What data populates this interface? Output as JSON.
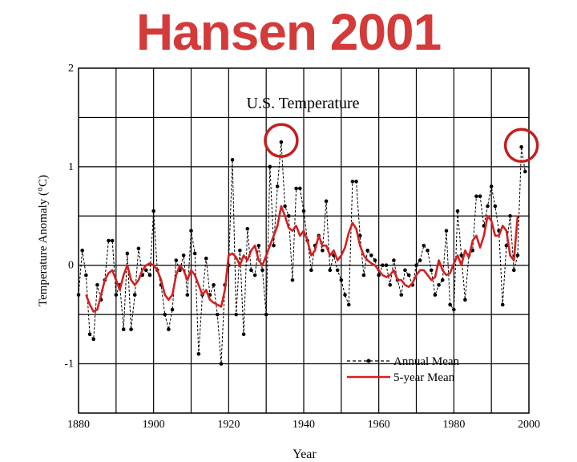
{
  "headline": "Hansen 2001",
  "headline_color": "#d43a3a",
  "chart_data": {
    "type": "line",
    "title": "U.S. Temperature",
    "xlabel": "Year",
    "ylabel": "Temperature Anomaly (°C)",
    "xlim": [
      1880,
      2000
    ],
    "ylim": [
      -1.5,
      2
    ],
    "xticks": [
      "1880",
      "1900",
      "1920",
      "1940",
      "1960",
      "1980",
      "2000"
    ],
    "yticks": [
      "-1",
      "0",
      "1",
      "2"
    ],
    "grid": true,
    "legend": "bottom-right",
    "series": [
      {
        "name": "Annual Mean",
        "style": "dashed-with-markers",
        "color": "#000000",
        "x": [
          1880,
          1881,
          1882,
          1883,
          1884,
          1885,
          1886,
          1887,
          1888,
          1889,
          1890,
          1891,
          1892,
          1893,
          1894,
          1895,
          1896,
          1897,
          1898,
          1899,
          1900,
          1901,
          1902,
          1903,
          1904,
          1905,
          1906,
          1907,
          1908,
          1909,
          1910,
          1911,
          1912,
          1913,
          1914,
          1915,
          1916,
          1917,
          1918,
          1919,
          1920,
          1921,
          1922,
          1923,
          1924,
          1925,
          1926,
          1927,
          1928,
          1929,
          1930,
          1931,
          1932,
          1933,
          1934,
          1935,
          1936,
          1937,
          1938,
          1939,
          1940,
          1941,
          1942,
          1943,
          1944,
          1945,
          1946,
          1947,
          1948,
          1949,
          1950,
          1951,
          1952,
          1953,
          1954,
          1955,
          1956,
          1957,
          1958,
          1959,
          1960,
          1961,
          1962,
          1963,
          1964,
          1965,
          1966,
          1967,
          1968,
          1969,
          1970,
          1971,
          1972,
          1973,
          1974,
          1975,
          1976,
          1977,
          1978,
          1979,
          1980,
          1981,
          1982,
          1983,
          1984,
          1985,
          1986,
          1987,
          1988,
          1989,
          1990,
          1991,
          1992,
          1993,
          1994,
          1995,
          1996,
          1997,
          1998,
          1999
        ],
        "values": [
          -0.3,
          0.15,
          -0.1,
          -0.7,
          -0.75,
          -0.2,
          -0.35,
          -0.15,
          0.25,
          0.25,
          -0.3,
          -0.2,
          -0.65,
          0.12,
          -0.65,
          -0.3,
          0.17,
          -0.1,
          -0.05,
          -0.1,
          0.55,
          -0.05,
          -0.2,
          -0.5,
          -0.65,
          -0.45,
          0.05,
          -0.05,
          0.1,
          -0.3,
          0.35,
          0.12,
          -0.9,
          -0.3,
          0.07,
          -0.3,
          -0.2,
          -0.5,
          -1.0,
          -0.2,
          0.0,
          1.07,
          -0.5,
          0.15,
          -0.7,
          0.37,
          -0.05,
          -0.1,
          0.2,
          -0.05,
          -0.5,
          1.0,
          0.2,
          0.8,
          1.25,
          0.6,
          0.5,
          -0.15,
          0.78,
          0.78,
          0.55,
          0.25,
          -0.05,
          0.2,
          0.3,
          0.15,
          0.65,
          -0.05,
          0.1,
          -0.05,
          -0.15,
          -0.3,
          -0.4,
          0.85,
          0.85,
          0.3,
          -0.1,
          0.15,
          0.1,
          0.05,
          -0.1,
          0.0,
          0.0,
          -0.2,
          0.05,
          -0.15,
          -0.3,
          -0.05,
          -0.1,
          -0.2,
          0.0,
          0.05,
          0.2,
          0.15,
          -0.05,
          -0.3,
          -0.2,
          -0.15,
          0.35,
          -0.4,
          -0.45,
          0.55,
          0.1,
          -0.35,
          0.1,
          0.15,
          0.7,
          0.7,
          0.4,
          0.6,
          0.8,
          0.6,
          0.35,
          -0.4,
          0.2,
          0.5,
          -0.05,
          0.1,
          1.2,
          0.95
        ]
      },
      {
        "name": "5-year Mean",
        "style": "solid",
        "color": "#d42020",
        "x": [
          1882,
          1883,
          1884,
          1885,
          1886,
          1887,
          1888,
          1889,
          1890,
          1891,
          1892,
          1893,
          1894,
          1895,
          1896,
          1897,
          1898,
          1899,
          1900,
          1901,
          1902,
          1903,
          1904,
          1905,
          1906,
          1907,
          1908,
          1909,
          1910,
          1911,
          1912,
          1913,
          1914,
          1915,
          1916,
          1917,
          1918,
          1919,
          1920,
          1921,
          1922,
          1923,
          1924,
          1925,
          1926,
          1927,
          1928,
          1929,
          1930,
          1931,
          1932,
          1933,
          1934,
          1935,
          1936,
          1937,
          1938,
          1939,
          1940,
          1941,
          1942,
          1943,
          1944,
          1945,
          1946,
          1947,
          1948,
          1949,
          1950,
          1951,
          1952,
          1953,
          1954,
          1955,
          1956,
          1957,
          1958,
          1959,
          1960,
          1961,
          1962,
          1963,
          1964,
          1965,
          1966,
          1967,
          1968,
          1969,
          1970,
          1971,
          1972,
          1973,
          1974,
          1975,
          1976,
          1977,
          1978,
          1979,
          1980,
          1981,
          1982,
          1983,
          1984,
          1985,
          1986,
          1987,
          1988,
          1989,
          1990,
          1991,
          1992,
          1993,
          1994,
          1995,
          1996,
          1997
        ],
        "values": [
          -0.3,
          -0.4,
          -0.47,
          -0.45,
          -0.3,
          -0.15,
          -0.08,
          -0.05,
          -0.15,
          -0.25,
          -0.1,
          0.0,
          -0.15,
          -0.2,
          -0.15,
          -0.05,
          0.0,
          0.02,
          0.0,
          -0.05,
          -0.15,
          -0.3,
          -0.35,
          -0.3,
          -0.1,
          0.0,
          -0.05,
          -0.15,
          -0.05,
          -0.1,
          -0.2,
          -0.3,
          -0.25,
          -0.35,
          -0.38,
          -0.4,
          -0.42,
          -0.25,
          0.1,
          0.12,
          0.08,
          0.0,
          0.1,
          0.05,
          0.15,
          0.2,
          0.05,
          0.0,
          0.1,
          0.2,
          0.3,
          0.4,
          0.6,
          0.5,
          0.38,
          0.35,
          0.4,
          0.3,
          0.35,
          0.25,
          0.1,
          0.15,
          0.3,
          0.2,
          0.2,
          0.1,
          0.15,
          0.05,
          0.1,
          0.18,
          0.33,
          0.43,
          0.37,
          0.2,
          0.1,
          0.05,
          0.02,
          0.0,
          -0.05,
          -0.1,
          -0.12,
          -0.1,
          -0.05,
          -0.15,
          -0.15,
          -0.2,
          -0.22,
          -0.18,
          -0.1,
          -0.05,
          -0.05,
          -0.1,
          -0.15,
          -0.12,
          0.05,
          -0.05,
          -0.1,
          -0.08,
          0.02,
          0.1,
          0.0,
          0.15,
          0.08,
          0.25,
          0.3,
          0.18,
          0.3,
          0.5,
          0.45,
          0.3,
          0.3,
          0.4,
          0.35,
          0.1,
          0.05,
          0.5
        ]
      }
    ],
    "highlights": [
      {
        "year": 1934,
        "value": 1.25
      },
      {
        "year": 1998,
        "value": 1.2
      }
    ],
    "highlight_color": "#c41e1e"
  }
}
